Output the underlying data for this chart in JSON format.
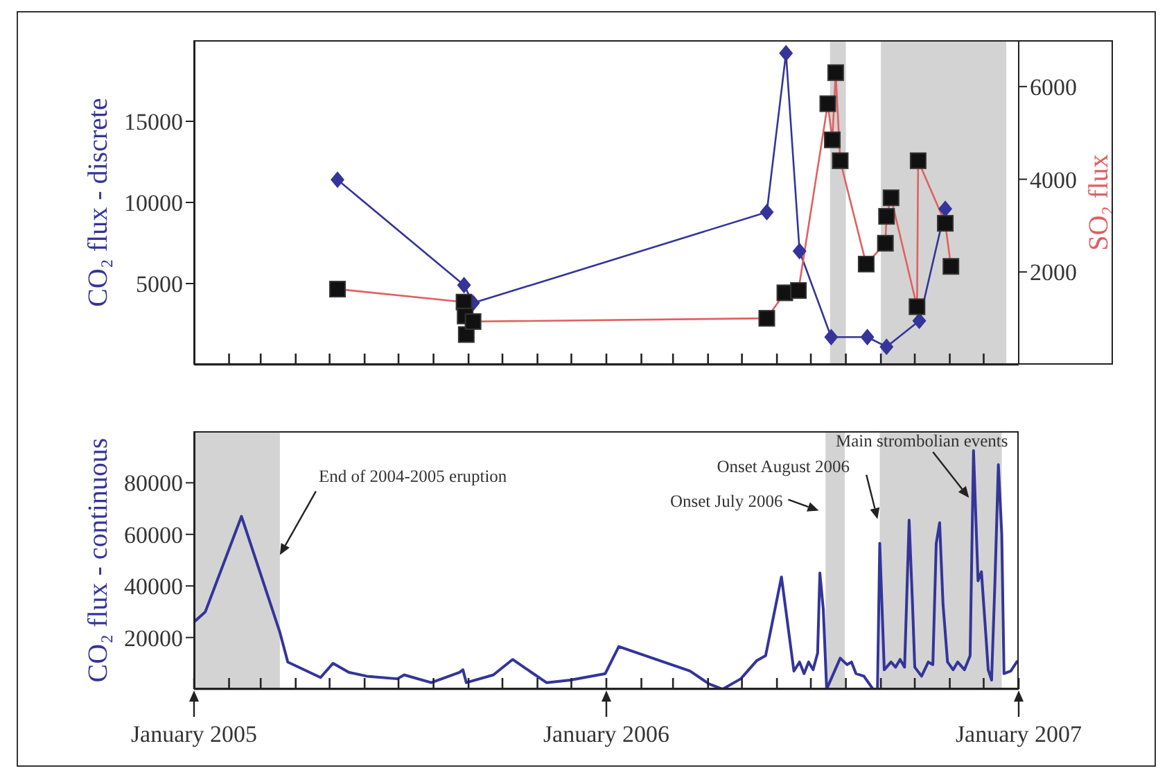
{
  "chart_data": [
    {
      "type": "line",
      "ylabel": "CO₂ flux - discrete",
      "y2label": "SO₂ flux",
      "xlim": [
        "2005-01-01",
        "2007-01-01"
      ],
      "xticks": [
        {
          "value": "2005-02-01",
          "label": null
        },
        {
          "value": "2005-03-01",
          "label": null
        },
        {
          "value": "2005-04-01",
          "label": null
        },
        {
          "value": "2005-05-01",
          "label": null
        },
        {
          "value": "2005-06-01",
          "label": null
        },
        {
          "value": "2005-07-01",
          "label": null
        },
        {
          "value": "2005-08-01",
          "label": null
        },
        {
          "value": "2005-09-01",
          "label": null
        },
        {
          "value": "2005-10-01",
          "label": null
        },
        {
          "value": "2005-11-01",
          "label": null
        },
        {
          "value": "2005-12-01",
          "label": null
        },
        {
          "value": "2006-01-01",
          "label": null
        },
        {
          "value": "2006-02-01",
          "label": null
        },
        {
          "value": "2006-03-01",
          "label": null
        },
        {
          "value": "2006-04-01",
          "label": null
        },
        {
          "value": "2006-05-01",
          "label": null
        },
        {
          "value": "2006-06-01",
          "label": null
        },
        {
          "value": "2006-07-01",
          "label": null
        },
        {
          "value": "2006-08-01",
          "label": null
        },
        {
          "value": "2006-09-01",
          "label": null
        },
        {
          "value": "2006-10-01",
          "label": null
        },
        {
          "value": "2006-11-01",
          "label": null
        },
        {
          "value": "2006-12-01",
          "label": null
        }
      ],
      "ylim": [
        0,
        20000
      ],
      "yticks": [
        5000,
        10000,
        15000
      ],
      "y2lim": [
        0,
        7000
      ],
      "y2ticks": [
        2000,
        4000,
        6000
      ],
      "tick_labels": "y",
      "series": [
        {
          "color": "#34349a",
          "marker": "diamond",
          "x": [
            "2005-05-08",
            "2005-08-28",
            "2005-09-05",
            "2006-05-23",
            "2006-06-09",
            "2006-06-21",
            "2006-07-19",
            "2006-08-20",
            "2006-09-06",
            "2006-10-05",
            "2006-10-28"
          ],
          "values": [
            11400,
            4900,
            3800,
            9400,
            19200,
            7000,
            1700,
            1700,
            1100,
            2700,
            9600
          ]
        },
        {
          "color": "#e06060",
          "marker": "square",
          "axis": "y2",
          "x": [
            "2005-05-08",
            "2005-08-28",
            "2005-08-29",
            "2005-08-30",
            "2005-09-05",
            "2006-05-23",
            "2006-06-08",
            "2006-06-20",
            "2006-07-16",
            "2006-07-20",
            "2006-07-23",
            "2006-07-27",
            "2006-08-19",
            "2006-09-05",
            "2006-09-06",
            "2006-09-10",
            "2006-10-03",
            "2006-10-04",
            "2006-10-28",
            "2006-11-02"
          ],
          "values": [
            1630,
            1350,
            1050,
            650,
            930,
            1000,
            1550,
            1600,
            5630,
            4850,
            6300,
            4400,
            2170,
            2620,
            3200,
            3600,
            1250,
            4400,
            3050,
            2120
          ]
        }
      ],
      "bands": [
        {
          "axis": "x",
          "from": "2006-07-18",
          "to": "2006-08-01",
          "color": "#d3d3d3"
        },
        {
          "axis": "x",
          "from": "2006-09-01",
          "to": "2006-12-21",
          "color": "#d3d3d3"
        }
      ]
    },
    {
      "type": "line",
      "ylabel": "CO₂ flux - continuous",
      "xlim": [
        "2005-01-01",
        "2007-01-01"
      ],
      "xticks": [
        {
          "value": "2005-01-01",
          "label": "January 2005"
        },
        {
          "value": "2005-02-01",
          "label": null
        },
        {
          "value": "2005-03-01",
          "label": null
        },
        {
          "value": "2005-04-01",
          "label": null
        },
        {
          "value": "2005-05-01",
          "label": null
        },
        {
          "value": "2005-06-01",
          "label": null
        },
        {
          "value": "2005-07-01",
          "label": null
        },
        {
          "value": "2005-08-01",
          "label": null
        },
        {
          "value": "2005-09-01",
          "label": null
        },
        {
          "value": "2005-10-01",
          "label": null
        },
        {
          "value": "2005-11-01",
          "label": null
        },
        {
          "value": "2005-12-01",
          "label": null
        },
        {
          "value": "2006-01-01",
          "label": "January 2006"
        },
        {
          "value": "2006-02-01",
          "label": null
        },
        {
          "value": "2006-03-01",
          "label": null
        },
        {
          "value": "2006-04-01",
          "label": null
        },
        {
          "value": "2006-05-01",
          "label": null
        },
        {
          "value": "2006-06-01",
          "label": null
        },
        {
          "value": "2006-07-01",
          "label": null
        },
        {
          "value": "2006-08-01",
          "label": null
        },
        {
          "value": "2006-09-01",
          "label": null
        },
        {
          "value": "2006-10-01",
          "label": null
        },
        {
          "value": "2006-11-01",
          "label": null
        },
        {
          "value": "2006-12-01",
          "label": null
        },
        {
          "value": "2007-01-01",
          "label": "January 2007"
        }
      ],
      "ylim": [
        0,
        100000
      ],
      "yticks": [
        20000,
        40000,
        60000,
        80000
      ],
      "series": [
        {
          "color": "#34349a",
          "marker": "none",
          "x": [
            "2005-01-01",
            "2005-01-11",
            "2005-02-12",
            "2005-03-18",
            "2005-03-25",
            "2005-04-23",
            "2005-05-04",
            "2005-05-18",
            "2005-06-03",
            "2005-06-30",
            "2005-07-06",
            "2005-07-30",
            "2005-08-24",
            "2005-08-27",
            "2005-08-30",
            "2005-09-23",
            "2005-10-10",
            "2005-11-09",
            "2005-11-30",
            "2005-12-31",
            "2006-01-12",
            "2006-03-16",
            "2006-04-02",
            "2006-04-14",
            "2006-04-30",
            "2006-05-14",
            "2006-05-22",
            "2006-06-05",
            "2006-06-16",
            "2006-06-21",
            "2006-06-25",
            "2006-06-29",
            "2006-07-03",
            "2006-07-07",
            "2006-07-09",
            "2006-07-12",
            "2006-07-15",
            "2006-07-27",
            "2006-08-02",
            "2006-08-06",
            "2006-08-10",
            "2006-08-17",
            "2006-08-25",
            "2006-08-29",
            "2006-08-31",
            "2006-09-04",
            "2006-09-10",
            "2006-09-14",
            "2006-09-18",
            "2006-09-22",
            "2006-09-26",
            "2006-09-29",
            "2006-10-01",
            "2006-10-07",
            "2006-10-13",
            "2006-10-17",
            "2006-10-20",
            "2006-10-23",
            "2006-10-26",
            "2006-10-30",
            "2006-11-04",
            "2006-11-08",
            "2006-11-14",
            "2006-11-19",
            "2006-11-22",
            "2006-11-26",
            "2006-11-29",
            "2006-12-03",
            "2006-12-05",
            "2006-12-08",
            "2006-12-11",
            "2006-12-14",
            "2006-12-17",
            "2006-12-19",
            "2006-12-25",
            "2006-12-31"
          ],
          "values": [
            26000,
            30000,
            67000,
            22000,
            10500,
            4500,
            10000,
            6500,
            5000,
            4000,
            5500,
            2500,
            6500,
            7500,
            2500,
            5500,
            11500,
            2500,
            3500,
            6000,
            16500,
            7000,
            2000,
            0,
            4000,
            11000,
            13000,
            43500,
            7000,
            10500,
            6000,
            10500,
            7500,
            14000,
            45000,
            31000,
            0,
            12000,
            9500,
            10500,
            6000,
            5000,
            0,
            0,
            56500,
            7500,
            10500,
            8500,
            11500,
            8500,
            65500,
            33000,
            8500,
            5000,
            10500,
            9500,
            56500,
            64500,
            33000,
            10500,
            7500,
            10500,
            7500,
            13000,
            92500,
            42000,
            45500,
            20500,
            7500,
            3500,
            42000,
            87000,
            60000,
            6000,
            7000,
            11000
          ]
        }
      ],
      "bands": [
        {
          "axis": "x",
          "from": "2005-01-01",
          "to": "2005-03-18",
          "color": "#d3d3d3"
        },
        {
          "axis": "x",
          "from": "2006-07-14",
          "to": "2006-07-31",
          "color": "#d3d3d3"
        },
        {
          "axis": "x",
          "from": "2006-08-31",
          "to": "2006-12-17",
          "color": "#d3d3d3"
        }
      ],
      "annotations": [
        {
          "text": "End of 2004-2005 eruption",
          "x": "2005-03-18",
          "y": 52000
        },
        {
          "text": "Onset July 2006",
          "x": "2006-07-08",
          "y": 69200
        },
        {
          "text": "Onset August 2006",
          "x": "2006-08-29",
          "y": 65900
        },
        {
          "text": "Main strombolian events",
          "x": "2006-11-18",
          "y": 74200
        }
      ]
    }
  ]
}
